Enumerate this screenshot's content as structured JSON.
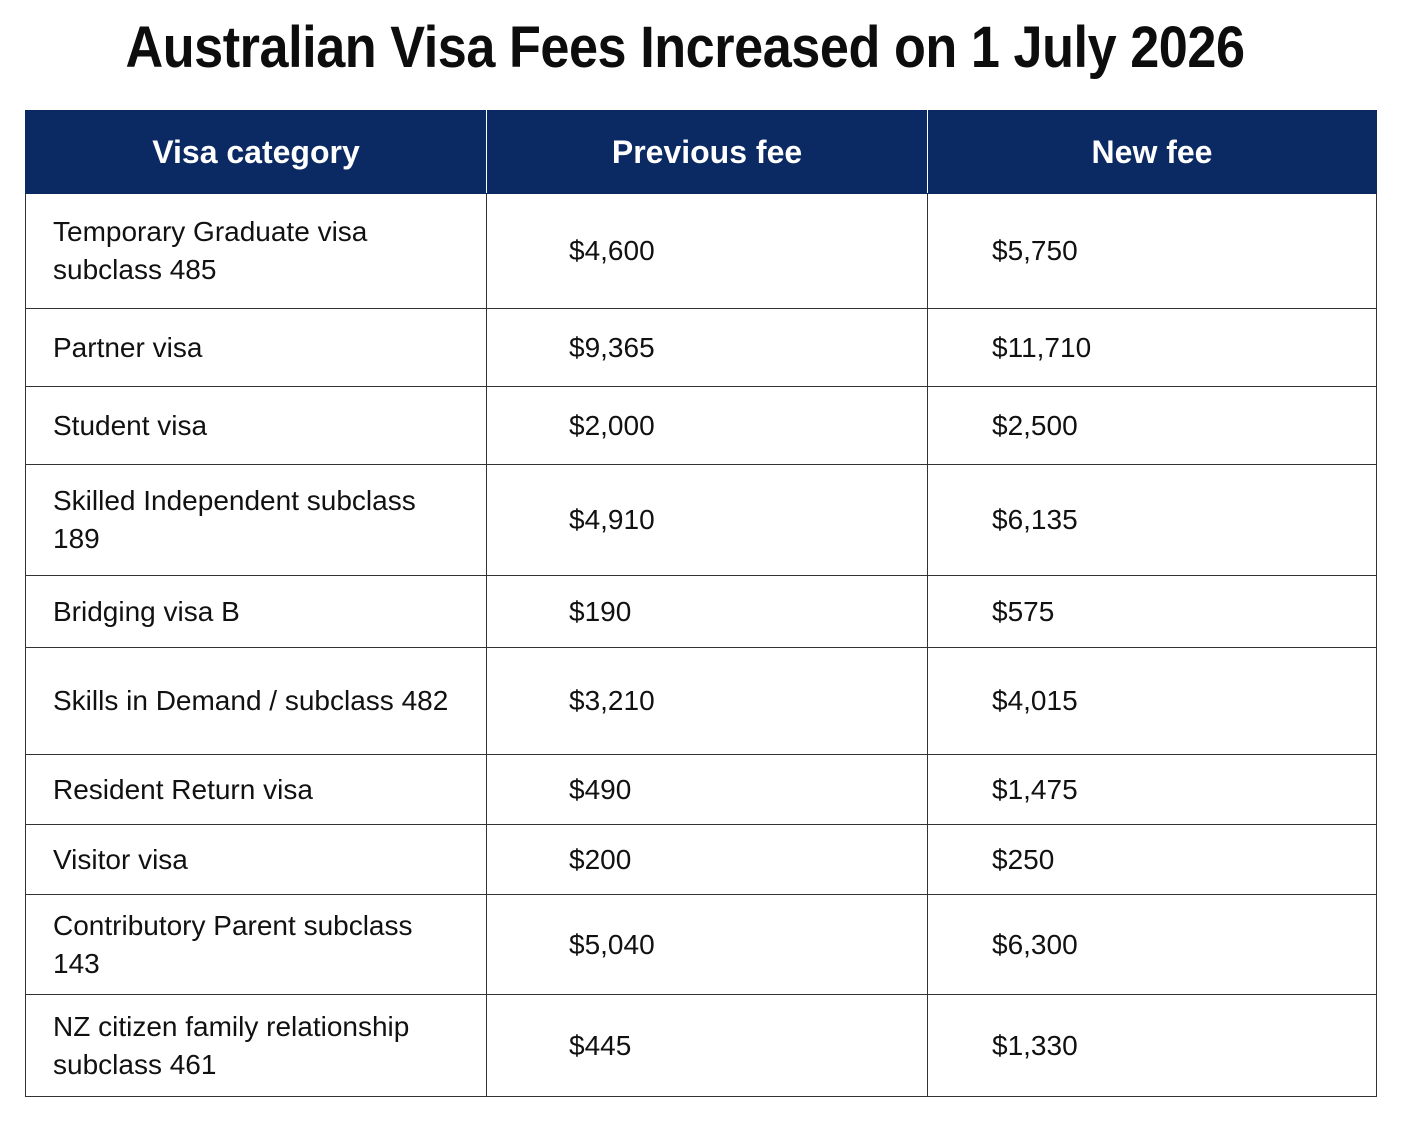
{
  "title": "Australian Visa Fees Increased on 1 July 2026",
  "table": {
    "headers": [
      "Visa category",
      "Previous fee",
      "New fee"
    ],
    "rows": [
      {
        "category": "Temporary Graduate visa subclass 485",
        "previous_fee": "$4,600",
        "new_fee": "$5,750"
      },
      {
        "category": "Partner visa",
        "previous_fee": "$9,365",
        "new_fee": "$11,710"
      },
      {
        "category": "Student visa",
        "previous_fee": "$2,000",
        "new_fee": "$2,500"
      },
      {
        "category": "Skilled Independent subclass 189",
        "previous_fee": "$4,910",
        "new_fee": "$6,135"
      },
      {
        "category": "Bridging visa B",
        "previous_fee": "$190",
        "new_fee": "$575"
      },
      {
        "category": "Skills in Demand / subclass 482",
        "previous_fee": "$3,210",
        "new_fee": "$4,015"
      },
      {
        "category": "Resident Return visa",
        "previous_fee": "$490",
        "new_fee": "$1,475"
      },
      {
        "category": "Visitor visa",
        "previous_fee": "$200",
        "new_fee": "$250"
      },
      {
        "category": "Contributory Parent subclass 143",
        "previous_fee": "$5,040",
        "new_fee": "$6,300"
      },
      {
        "category": "NZ citizen family relationship subclass 461",
        "previous_fee": "$445",
        "new_fee": "$1,330"
      }
    ]
  },
  "colors": {
    "header_background": "#0b2a63",
    "header_text": "#ffffff",
    "border": "#333333"
  }
}
